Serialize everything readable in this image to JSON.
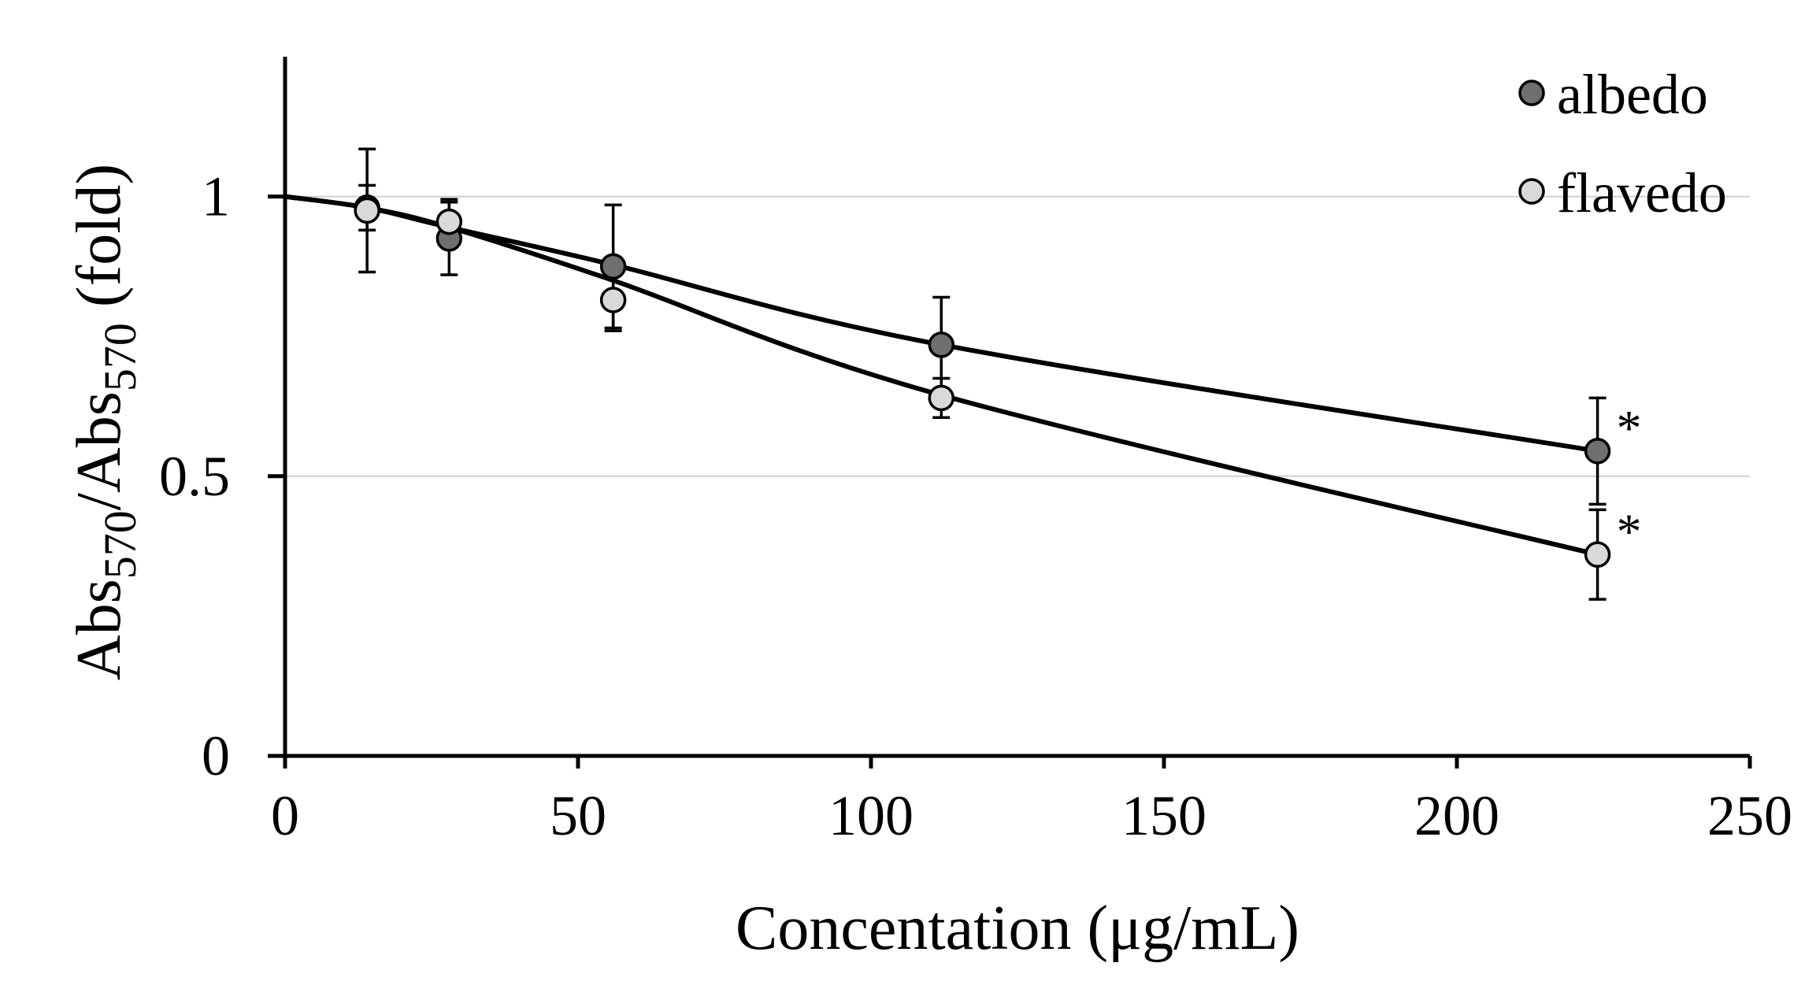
{
  "chart_data": {
    "type": "line",
    "title": "",
    "xlabel": "Concentation (μg/mL)",
    "ylabel": {
      "main": "Abs",
      "sub1": "570",
      "slash": "/Abs",
      "sub2": "570",
      "suffix": " (fold)"
    },
    "xlim": [
      0,
      250
    ],
    "ylim": [
      0,
      1.25
    ],
    "xticks": [
      {
        "value": 0,
        "label": "0"
      },
      {
        "value": 50,
        "label": "50"
      },
      {
        "value": 100,
        "label": "100"
      },
      {
        "value": 150,
        "label": "150"
      },
      {
        "value": 200,
        "label": "200"
      },
      {
        "value": 250,
        "label": "250"
      }
    ],
    "yticks": [
      {
        "value": 0,
        "label": "0"
      },
      {
        "value": 0.5,
        "label": "0.5"
      },
      {
        "value": 1,
        "label": "1"
      }
    ],
    "gridlines_y": [
      0.5,
      1
    ],
    "legend_position": "top-right",
    "series": [
      {
        "name": "albedo",
        "color": "#6f6f6f",
        "x": [
          14,
          28,
          56,
          112,
          224
        ],
        "y": [
          0.98,
          0.925,
          0.875,
          0.735,
          0.545
        ],
        "err": [
          0.04,
          0.065,
          0.11,
          0.085,
          0.095
        ],
        "fit": [
          [
            0,
            1.0
          ],
          [
            14,
            0.98
          ],
          [
            28,
            0.945
          ],
          [
            56,
            0.878
          ],
          [
            112,
            0.735
          ],
          [
            224,
            0.545
          ]
        ],
        "annotation": "*"
      },
      {
        "name": "flavedo",
        "color": "#d9d9d9",
        "x": [
          14,
          28,
          56,
          112,
          224
        ],
        "y": [
          0.975,
          0.955,
          0.815,
          0.64,
          0.36
        ],
        "err": [
          0.11,
          0.04,
          0.055,
          0.035,
          0.08
        ],
        "fit": [
          [
            0,
            1.0
          ],
          [
            14,
            0.98
          ],
          [
            28,
            0.945
          ],
          [
            56,
            0.85
          ],
          [
            112,
            0.645
          ],
          [
            224,
            0.36
          ]
        ],
        "annotation": "*"
      }
    ]
  }
}
